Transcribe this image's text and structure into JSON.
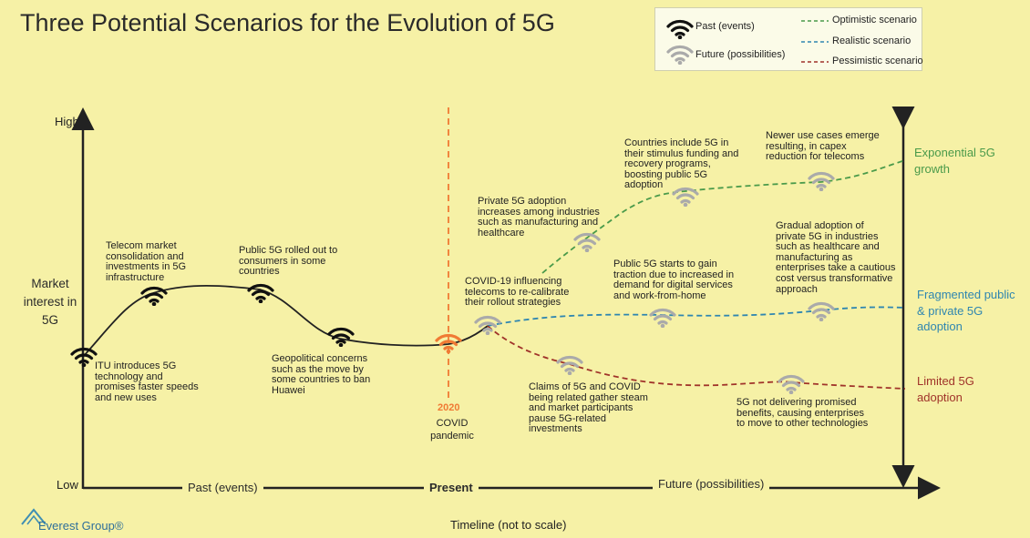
{
  "title": "Three Potential Scenarios for the Evolution of 5G",
  "legend": {
    "past": "Past (events)",
    "future": "Future (possibilities)",
    "optimistic": "Optimistic scenario",
    "realistic": "Realistic scenario",
    "pessimistic": "Pessimistic scenario"
  },
  "colors": {
    "background": "#f6f1a6",
    "optimistic": "#4a9a4a",
    "realistic": "#2f86b0",
    "pessimistic": "#a0332a",
    "present": "#f07a34"
  },
  "y_axis": {
    "label": "Market interest in 5G",
    "high": "High",
    "low": "Low"
  },
  "x_axis": {
    "past": "Past (events)",
    "present": "Present",
    "future": "Future (possibilities)",
    "timeline": "Timeline (not to scale)"
  },
  "present_marker": {
    "year": "2020",
    "label": "COVID pandemic"
  },
  "past_events": [
    {
      "icon": "wifi-black-icon",
      "text": "ITU introduces 5G technology and promises faster speeds and new uses"
    },
    {
      "icon": "wifi-black-icon",
      "text": "Telecom market consolidation and investments in 5G infrastructure"
    },
    {
      "icon": "wifi-black-icon",
      "text": "Public 5G rolled out to consumers in some countries"
    },
    {
      "icon": "wifi-black-icon",
      "text": "Geopolitical concerns such as the move by some countries to ban Huawei"
    }
  ],
  "future_possibilities": [
    {
      "text": "COVID-19 influencing telecoms to re-calibrate their rollout strategies"
    },
    {
      "text": "Private 5G adoption increases among industries such as manufacturing and healthcare"
    },
    {
      "text": "Countries include 5G in their stimulus funding and recovery programs, boosting public 5G adoption"
    },
    {
      "text": "Newer use cases emerge resulting, in capex reduction for telecoms"
    },
    {
      "text": "Public 5G starts to gain traction due to increased in demand for digital services and work-from-home"
    },
    {
      "text": "Gradual adoption of private 5G in industries such as healthcare and manufacturing as enterprises take a cautious cost versus transformative approach"
    },
    {
      "text": "Claims of 5G and COVID being related gather steam and market participants pause 5G-related investments"
    },
    {
      "text": "5G not delivering promised benefits, causing enterprises to move to other technologies"
    }
  ],
  "outcomes": {
    "optimistic": "Exponential 5G growth",
    "realistic": "Fragmented public & private 5G adoption",
    "pessimistic": "Limited 5G adoption"
  },
  "brand": "Everest Group®"
}
